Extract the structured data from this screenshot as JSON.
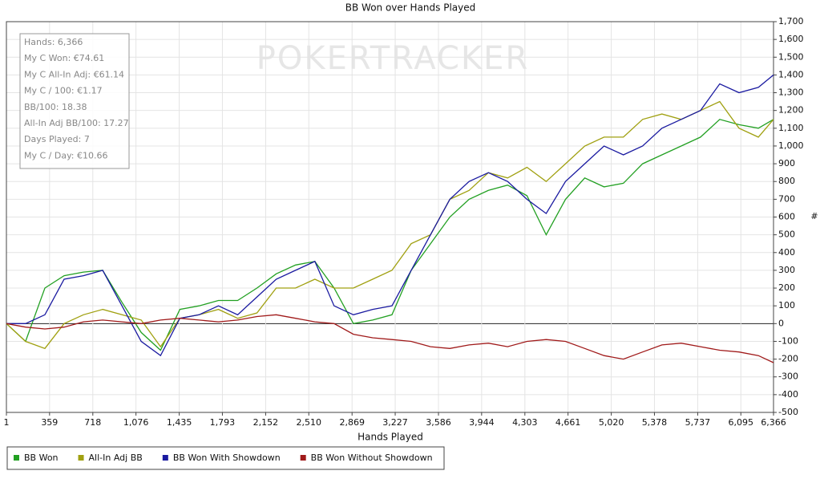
{
  "chart_data": {
    "type": "line",
    "title": "BB Won over Hands Played",
    "x_label": "Hands Played",
    "y_label": "#",
    "watermark": "POKERTRACKER",
    "stats": [
      "Hands: 6,366",
      "My C Won: €74.61",
      "My C All-In Adj: €61.14",
      "My C / 100: €1.17",
      "BB/100: 18.38",
      "All-In Adj BB/100: 17.27",
      "Days Played: 7",
      "My C / Day: €10.66"
    ],
    "x": [
      1,
      160,
      320,
      480,
      640,
      800,
      960,
      1120,
      1280,
      1440,
      1600,
      1760,
      1920,
      2080,
      2240,
      2400,
      2560,
      2720,
      2880,
      3040,
      3200,
      3360,
      3520,
      3680,
      3840,
      4000,
      4160,
      4320,
      4480,
      4640,
      4800,
      4960,
      5120,
      5280,
      5440,
      5600,
      5760,
      5920,
      6080,
      6240,
      6366
    ],
    "series": [
      {
        "name": "BB Won",
        "color": "#22a022",
        "values": [
          0,
          -100,
          200,
          270,
          290,
          300,
          120,
          -50,
          -150,
          80,
          100,
          130,
          130,
          200,
          280,
          330,
          350,
          200,
          0,
          20,
          50,
          300,
          450,
          600,
          700,
          750,
          780,
          720,
          500,
          700,
          820,
          770,
          790,
          900,
          950,
          1000,
          1050,
          1150,
          1120,
          1100,
          1150
        ]
      },
      {
        "name": "All-In Adj BB",
        "color": "#a0a010",
        "values": [
          0,
          -100,
          -140,
          0,
          50,
          80,
          50,
          20,
          -130,
          30,
          50,
          80,
          30,
          60,
          200,
          200,
          250,
          200,
          200,
          250,
          300,
          450,
          500,
          700,
          750,
          850,
          820,
          880,
          800,
          900,
          1000,
          1050,
          1050,
          1150,
          1180,
          1150,
          1200,
          1250,
          1100,
          1050,
          1150
        ]
      },
      {
        "name": "BB Won With Showdown",
        "color": "#1a1aa0",
        "values": [
          0,
          0,
          50,
          250,
          270,
          300,
          100,
          -100,
          -180,
          30,
          50,
          100,
          50,
          150,
          250,
          300,
          350,
          100,
          50,
          80,
          100,
          300,
          500,
          700,
          800,
          850,
          800,
          700,
          620,
          800,
          900,
          1000,
          950,
          1000,
          1100,
          1150,
          1200,
          1350,
          1300,
          1330,
          1400
        ]
      },
      {
        "name": "BB Won Without Showdown",
        "color": "#a01a1a",
        "values": [
          0,
          -20,
          -30,
          -20,
          10,
          20,
          10,
          0,
          20,
          30,
          20,
          10,
          20,
          40,
          50,
          30,
          10,
          0,
          -60,
          -80,
          -90,
          -100,
          -130,
          -140,
          -120,
          -110,
          -130,
          -100,
          -90,
          -100,
          -140,
          -180,
          -200,
          -160,
          -120,
          -110,
          -130,
          -150,
          -160,
          -180,
          -220
        ]
      }
    ],
    "xlim": [
      1,
      6366
    ],
    "xticks": [
      1,
      359,
      718,
      {
        "value": 1076,
        "label": "1,076"
      },
      {
        "value": 1435,
        "label": "1,435"
      },
      {
        "value": 1793,
        "label": "1,793"
      },
      {
        "value": 2152,
        "label": "2,152"
      },
      {
        "value": 2510,
        "label": "2,510"
      },
      {
        "value": 2869,
        "label": "2,869"
      },
      {
        "value": 3227,
        "label": "3,227"
      },
      {
        "value": 3586,
        "label": "3,586"
      },
      {
        "value": 3944,
        "label": "3,944"
      },
      {
        "value": 4303,
        "label": "4,303"
      },
      {
        "value": 4661,
        "label": "4,661"
      },
      {
        "value": 5020,
        "label": "5,020"
      },
      {
        "value": 5378,
        "label": "5,378"
      },
      {
        "value": 5737,
        "label": "5,737"
      },
      {
        "value": 6095,
        "label": "6,095"
      },
      {
        "value": 6366,
        "label": "6,366"
      }
    ],
    "ylim": [
      -500,
      1700
    ],
    "yticks": [
      -500,
      -400,
      -300,
      -200,
      -100,
      0,
      100,
      200,
      300,
      400,
      500,
      600,
      700,
      800,
      900,
      {
        "value": 1000,
        "label": "1,000"
      },
      {
        "value": 1100,
        "label": "1,100"
      },
      {
        "value": 1200,
        "label": "1,200"
      },
      {
        "value": 1300,
        "label": "1,300"
      },
      {
        "value": 1400,
        "label": "1,400"
      },
      {
        "value": 1500,
        "label": "1,500"
      },
      {
        "value": 1600,
        "label": "1,600"
      },
      {
        "value": 1700,
        "label": "1,700"
      }
    ],
    "grid": true
  }
}
